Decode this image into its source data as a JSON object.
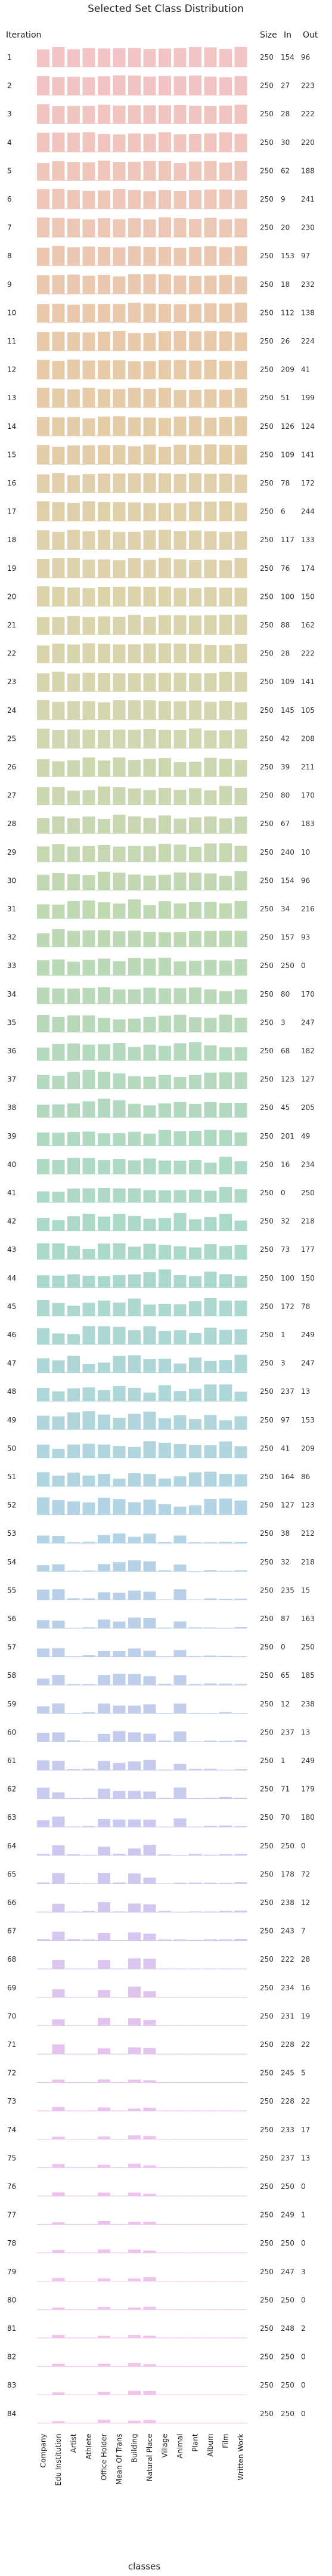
{
  "chart_data": {
    "type": "bar",
    "title": "Selected Set Class Distribution",
    "xlabel": "classes",
    "row_header": "Iteration",
    "column_headers": [
      "Size",
      "In",
      "Out"
    ],
    "categories": [
      "Company",
      "Edu Institution",
      "Artist",
      "Athlete",
      "Office Holder",
      "Mean Of Trans",
      "Building",
      "Natural Place",
      "Village",
      "Animal",
      "Plant",
      "Album",
      "Film",
      "Written Work"
    ],
    "rows": [
      {
        "iteration": "1",
        "size": 250,
        "in": 154,
        "out": 96
      },
      {
        "iteration": "2",
        "size": 250,
        "in": 27,
        "out": 223
      },
      {
        "iteration": "3",
        "size": 250,
        "in": 28,
        "out": 222
      },
      {
        "iteration": "4",
        "size": 250,
        "in": 30,
        "out": 220
      },
      {
        "iteration": "5",
        "size": 250,
        "in": 62,
        "out": 188
      },
      {
        "iteration": "6",
        "size": 250,
        "in": 9,
        "out": 241
      },
      {
        "iteration": "7",
        "size": 250,
        "in": 20,
        "out": 230
      },
      {
        "iteration": "8",
        "size": 250,
        "in": 153,
        "out": 97
      },
      {
        "iteration": "9",
        "size": 250,
        "in": 18,
        "out": 232
      },
      {
        "iteration": "10",
        "size": 250,
        "in": 112,
        "out": 138
      },
      {
        "iteration": "11",
        "size": 250,
        "in": 26,
        "out": 224
      },
      {
        "iteration": "12",
        "size": 250,
        "in": 209,
        "out": 41
      },
      {
        "iteration": "13",
        "size": 250,
        "in": 51,
        "out": 199
      },
      {
        "iteration": "14",
        "size": 250,
        "in": 126,
        "out": 124
      },
      {
        "iteration": "15",
        "size": 250,
        "in": 109,
        "out": 141
      },
      {
        "iteration": "16",
        "size": 250,
        "in": 78,
        "out": 172
      },
      {
        "iteration": "17",
        "size": 250,
        "in": 6,
        "out": 244
      },
      {
        "iteration": "18",
        "size": 250,
        "in": 117,
        "out": 133
      },
      {
        "iteration": "19",
        "size": 250,
        "in": 76,
        "out": 174
      },
      {
        "iteration": "20",
        "size": 250,
        "in": 100,
        "out": 150
      },
      {
        "iteration": "21",
        "size": 250,
        "in": 88,
        "out": 162
      },
      {
        "iteration": "22",
        "size": 250,
        "in": 28,
        "out": 222
      },
      {
        "iteration": "23",
        "size": 250,
        "in": 109,
        "out": 141
      },
      {
        "iteration": "24",
        "size": 250,
        "in": 145,
        "out": 105
      },
      {
        "iteration": "25",
        "size": 250,
        "in": 42,
        "out": 208
      },
      {
        "iteration": "26",
        "size": 250,
        "in": 39,
        "out": 211
      },
      {
        "iteration": "27",
        "size": 250,
        "in": 80,
        "out": 170
      },
      {
        "iteration": "28",
        "size": 250,
        "in": 67,
        "out": 183
      },
      {
        "iteration": "29",
        "size": 250,
        "in": 240,
        "out": 10
      },
      {
        "iteration": "30",
        "size": 250,
        "in": 154,
        "out": 96
      },
      {
        "iteration": "31",
        "size": 250,
        "in": 34,
        "out": 216
      },
      {
        "iteration": "32",
        "size": 250,
        "in": 157,
        "out": 93
      },
      {
        "iteration": "33",
        "size": 250,
        "in": 250,
        "out": 0
      },
      {
        "iteration": "34",
        "size": 250,
        "in": 80,
        "out": 170
      },
      {
        "iteration": "35",
        "size": 250,
        "in": 3,
        "out": 247
      },
      {
        "iteration": "36",
        "size": 250,
        "in": 68,
        "out": 182
      },
      {
        "iteration": "37",
        "size": 250,
        "in": 123,
        "out": 127
      },
      {
        "iteration": "38",
        "size": 250,
        "in": 45,
        "out": 205
      },
      {
        "iteration": "39",
        "size": 250,
        "in": 201,
        "out": 49
      },
      {
        "iteration": "40",
        "size": 250,
        "in": 16,
        "out": 234
      },
      {
        "iteration": "41",
        "size": 250,
        "in": 0,
        "out": 250
      },
      {
        "iteration": "42",
        "size": 250,
        "in": 32,
        "out": 218
      },
      {
        "iteration": "43",
        "size": 250,
        "in": 73,
        "out": 177
      },
      {
        "iteration": "44",
        "size": 250,
        "in": 100,
        "out": 150
      },
      {
        "iteration": "45",
        "size": 250,
        "in": 172,
        "out": 78
      },
      {
        "iteration": "46",
        "size": 250,
        "in": 1,
        "out": 249
      },
      {
        "iteration": "47",
        "size": 250,
        "in": 3,
        "out": 247
      },
      {
        "iteration": "48",
        "size": 250,
        "in": 237,
        "out": 13
      },
      {
        "iteration": "49",
        "size": 250,
        "in": 97,
        "out": 153
      },
      {
        "iteration": "50",
        "size": 250,
        "in": 41,
        "out": 209
      },
      {
        "iteration": "51",
        "size": 250,
        "in": 164,
        "out": 86
      },
      {
        "iteration": "52",
        "size": 250,
        "in": 127,
        "out": 123
      },
      {
        "iteration": "53",
        "size": 250,
        "in": 38,
        "out": 212
      },
      {
        "iteration": "54",
        "size": 250,
        "in": 32,
        "out": 218
      },
      {
        "iteration": "55",
        "size": 250,
        "in": 235,
        "out": 15
      },
      {
        "iteration": "56",
        "size": 250,
        "in": 87,
        "out": 163
      },
      {
        "iteration": "57",
        "size": 250,
        "in": 0,
        "out": 250
      },
      {
        "iteration": "58",
        "size": 250,
        "in": 65,
        "out": 185
      },
      {
        "iteration": "59",
        "size": 250,
        "in": 12,
        "out": 238
      },
      {
        "iteration": "60",
        "size": 250,
        "in": 237,
        "out": 13
      },
      {
        "iteration": "61",
        "size": 250,
        "in": 1,
        "out": 249
      },
      {
        "iteration": "62",
        "size": 250,
        "in": 71,
        "out": 179
      },
      {
        "iteration": "63",
        "size": 250,
        "in": 70,
        "out": 180
      },
      {
        "iteration": "64",
        "size": 250,
        "in": 250,
        "out": 0
      },
      {
        "iteration": "65",
        "size": 250,
        "in": 178,
        "out": 72
      },
      {
        "iteration": "66",
        "size": 250,
        "in": 238,
        "out": 12
      },
      {
        "iteration": "67",
        "size": 250,
        "in": 243,
        "out": 7
      },
      {
        "iteration": "68",
        "size": 250,
        "in": 222,
        "out": 28
      },
      {
        "iteration": "69",
        "size": 250,
        "in": 234,
        "out": 16
      },
      {
        "iteration": "70",
        "size": 250,
        "in": 231,
        "out": 19
      },
      {
        "iteration": "71",
        "size": 250,
        "in": 228,
        "out": 22
      },
      {
        "iteration": "72",
        "size": 250,
        "in": 245,
        "out": 5
      },
      {
        "iteration": "73",
        "size": 250,
        "in": 228,
        "out": 22
      },
      {
        "iteration": "74",
        "size": 250,
        "in": 233,
        "out": 17
      },
      {
        "iteration": "75",
        "size": 250,
        "in": 237,
        "out": 13
      },
      {
        "iteration": "76",
        "size": 250,
        "in": 250,
        "out": 0
      },
      {
        "iteration": "77",
        "size": 250,
        "in": 249,
        "out": 1
      },
      {
        "iteration": "78",
        "size": 250,
        "in": 250,
        "out": 0
      },
      {
        "iteration": "79",
        "size": 250,
        "in": 247,
        "out": 3
      },
      {
        "iteration": "80",
        "size": 250,
        "in": 250,
        "out": 0
      },
      {
        "iteration": "81",
        "size": 250,
        "in": 248,
        "out": 2
      },
      {
        "iteration": "82",
        "size": 250,
        "in": 250,
        "out": 0
      },
      {
        "iteration": "83",
        "size": 250,
        "in": 250,
        "out": 0
      },
      {
        "iteration": "84",
        "size": 250,
        "in": 250,
        "out": 0
      }
    ],
    "row_colors_start": "#f2c4c6",
    "row_colors_stops": [
      "#f2c4c6",
      "#e8c9a8",
      "#d9d5ac",
      "#bcd9b4",
      "#aad9c9",
      "#b3d3e6",
      "#cbc9ef",
      "#ecc2ee",
      "#f3c3ea"
    ],
    "highlight_color": "#ff6a6a",
    "grid": false
  }
}
